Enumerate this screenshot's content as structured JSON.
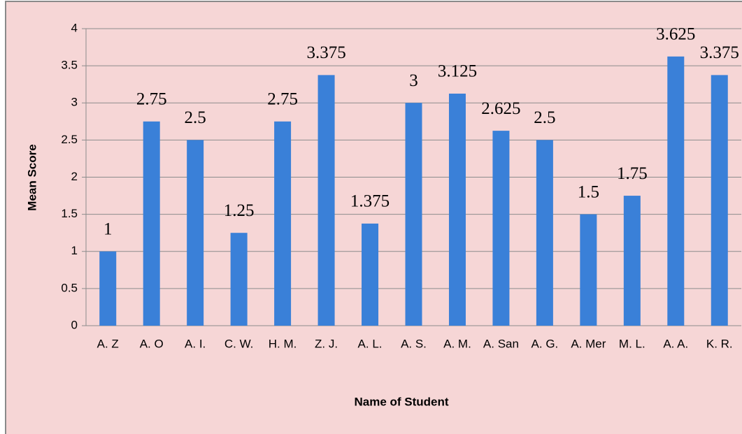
{
  "chart_data": {
    "type": "bar",
    "categories": [
      "A. Z",
      "A. O",
      "A. I.",
      "C. W.",
      "H. M.",
      "Z. J.",
      "A. L.",
      "A. S.",
      "A. M.",
      "A. San",
      "A. G.",
      "A. Mer",
      "M. L.",
      "A. A.",
      "K. R."
    ],
    "values": [
      1,
      2.75,
      2.5,
      1.25,
      2.75,
      3.375,
      1.375,
      3,
      3.125,
      2.625,
      2.5,
      1.5,
      1.75,
      3.625,
      3.375
    ],
    "color": "#3a80d8",
    "ylim": [
      0,
      4
    ],
    "yticks": [
      0,
      0.5,
      1,
      1.5,
      2,
      2.5,
      3,
      3.5,
      4
    ],
    "grid": true,
    "xlabel": "Name of Student",
    "ylabel": "Mean Score"
  }
}
